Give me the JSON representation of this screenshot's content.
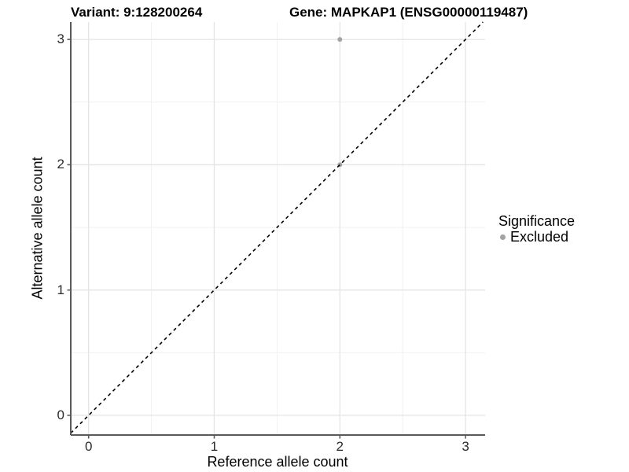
{
  "chart_data": {
    "type": "scatter",
    "title_left": "Variant: 9:128200264",
    "title_right": "Gene: MAPKAP1 (ENSG00000119487)",
    "xlabel": "Reference allele count",
    "ylabel": "Alternative allele count",
    "x_ticks": [
      0,
      1,
      2,
      3
    ],
    "y_ticks": [
      0,
      1,
      2,
      3
    ],
    "xlim": [
      -0.142,
      3.156
    ],
    "ylim": [
      -0.157,
      3.139
    ],
    "grid": {
      "major": true,
      "minor": true,
      "major_color": "#e4e4e4",
      "minor_color": "#f1f1f1"
    },
    "axis_color": "#5a5a5a",
    "series": [
      {
        "name": "Excluded",
        "color": "#a3a3a3",
        "points": [
          {
            "x": 2,
            "y": 3
          },
          {
            "x": 2,
            "y": 2
          }
        ]
      }
    ],
    "reference_line": {
      "type": "identity",
      "equation": "y = x",
      "style": "dashed",
      "color": "#000000"
    },
    "legend": {
      "title": "Significance",
      "position": "right",
      "items": [
        {
          "label": "Excluded",
          "color": "#a3a3a3"
        }
      ]
    }
  }
}
